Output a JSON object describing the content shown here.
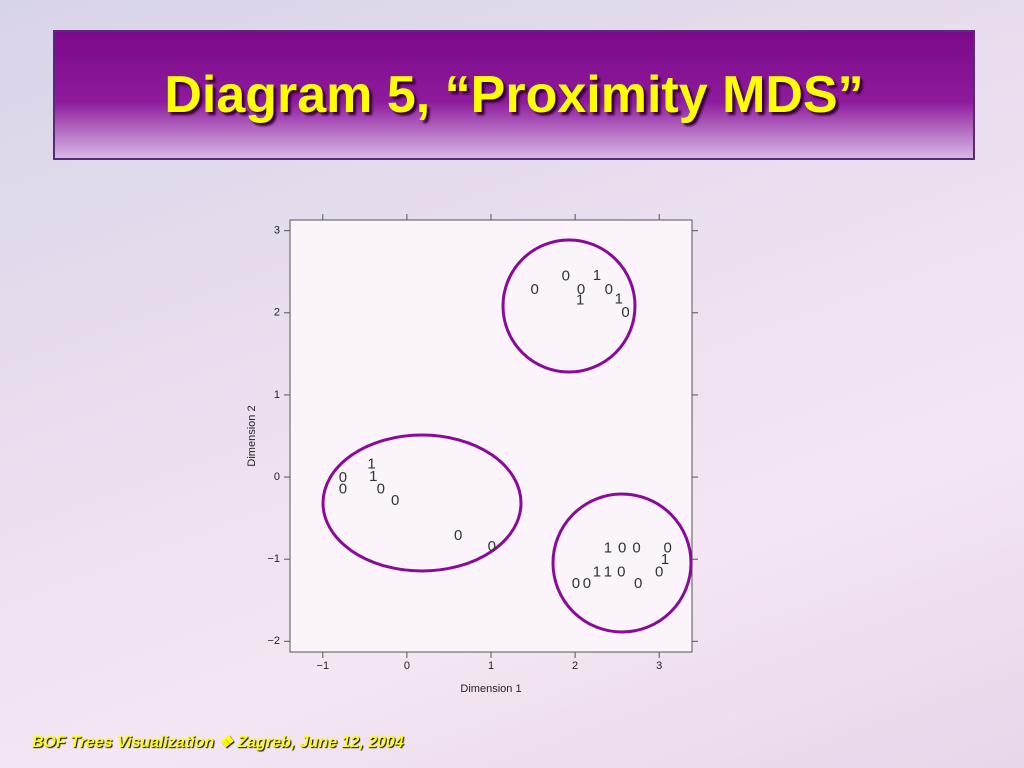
{
  "slide": {
    "title": "Diagram 5, “Proximity MDS”",
    "footer": "BOF Trees Visualization ❖ Zagreb, June 12, 2004"
  },
  "chart_data": {
    "type": "scatter",
    "x_label": "Dimension 1",
    "y_label": "Dimension 2",
    "xlim": [
      -1.39,
      3.39
    ],
    "ylim": [
      -2.13,
      3.13
    ],
    "xticks": [
      {
        "value": -1,
        "label": "−1"
      },
      0,
      1,
      2,
      3
    ],
    "yticks": [
      {
        "value": -2,
        "label": "−2"
      },
      {
        "value": -1,
        "label": "−1"
      },
      0,
      1,
      2,
      3
    ],
    "x": [
      1.89,
      2.26,
      1.52,
      2.07,
      2.4,
      2.06,
      2.52,
      2.6,
      -0.76,
      -0.76,
      -0.42,
      -0.4,
      -0.31,
      -0.14,
      0.61,
      1.01,
      2.39,
      2.56,
      2.73,
      3.1,
      3.07,
      2.26,
      2.39,
      2.55,
      3.0,
      2.01,
      2.14,
      2.75
    ],
    "values": [
      2.44,
      2.45,
      2.28,
      2.28,
      2.28,
      2.15,
      2.16,
      2.0,
      -0.01,
      -0.15,
      0.15,
      0.0,
      -0.15,
      -0.29,
      -0.72,
      -0.85,
      -0.87,
      -0.87,
      -0.87,
      -0.87,
      -1.01,
      -1.16,
      -1.16,
      -1.16,
      -1.16,
      -1.3,
      -1.3,
      -1.3
    ],
    "point_labels": [
      "0",
      "1",
      "0",
      "0",
      "0",
      "1",
      "1",
      "0",
      "0",
      "0",
      "1",
      "1",
      "0",
      "0",
      "0",
      "0",
      "1",
      "0",
      "0",
      "0",
      "1",
      "1",
      "1",
      "0",
      "0",
      "0",
      "0",
      "0"
    ],
    "color": "#333333"
  }
}
